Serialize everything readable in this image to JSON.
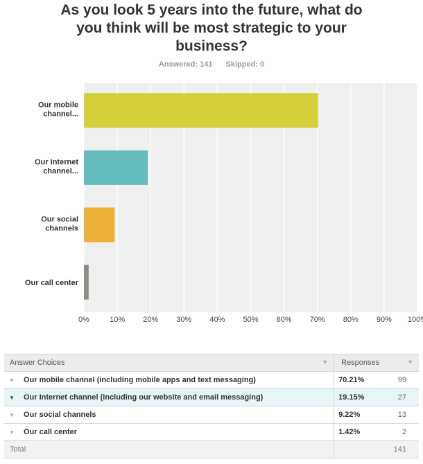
{
  "title_lines": [
    "As you look 5 years into the future, what do",
    "you think will be most strategic to your",
    "business?"
  ],
  "answered": "Answered: 141",
  "skipped": "Skipped: 0",
  "chart_data": {
    "type": "bar",
    "orientation": "horizontal",
    "categories": [
      "Our mobile channel...",
      "Our Internet channel...",
      "Our social channels",
      "Our call center"
    ],
    "values": [
      70.21,
      19.15,
      9.22,
      1.42
    ],
    "colors": [
      "#d3d03a",
      "#64bcbd",
      "#efb03a",
      "#8e8c82"
    ],
    "xlim": [
      0,
      100
    ],
    "ticks": [
      "0%",
      "10%",
      "20%",
      "30%",
      "40%",
      "50%",
      "60%",
      "70%",
      "80%",
      "90%",
      "100%"
    ],
    "grid": true
  },
  "table": {
    "header_choices": "Answer Choices",
    "header_responses": "Responses",
    "rows": [
      {
        "label": "Our mobile channel (including mobile apps and text messaging)",
        "pct": "70.21%",
        "count": "99"
      },
      {
        "label": "Our Internet channel (including our website and email messaging)",
        "pct": "19.15%",
        "count": "27"
      },
      {
        "label": "Our social channels",
        "pct": "9.22%",
        "count": "13"
      },
      {
        "label": "Our call center",
        "pct": "1.42%",
        "count": "2"
      }
    ],
    "total_label": "Total",
    "total_count": "141"
  }
}
